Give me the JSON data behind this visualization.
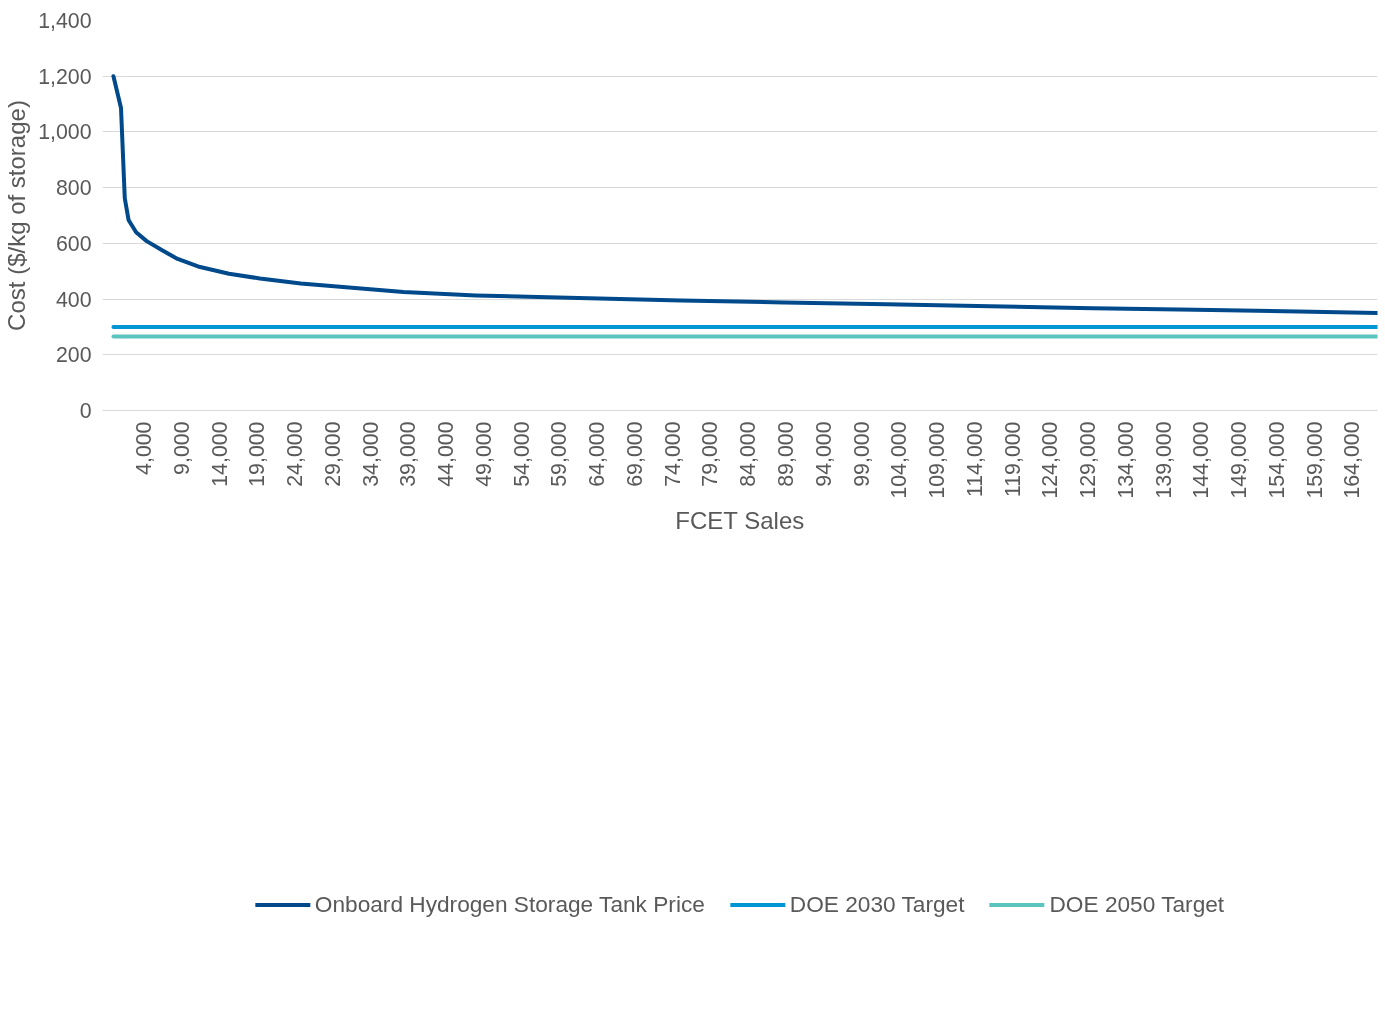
{
  "chart_data": {
    "type": "line",
    "xlabel": "FCET Sales",
    "ylabel": "Cost ($/kg of storage)",
    "xlim": [
      -1450,
      167400
    ],
    "ylim": [
      0,
      1400
    ],
    "xticks": [
      {
        "value": 4000,
        "label": "4,000"
      },
      {
        "value": 9000,
        "label": "9,000"
      },
      {
        "value": 14000,
        "label": "14,000"
      },
      {
        "value": 19000,
        "label": "19,000"
      },
      {
        "value": 24000,
        "label": "24,000"
      },
      {
        "value": 29000,
        "label": "29,000"
      },
      {
        "value": 34000,
        "label": "34,000"
      },
      {
        "value": 39000,
        "label": "39,000"
      },
      {
        "value": 44000,
        "label": "44,000"
      },
      {
        "value": 49000,
        "label": "49,000"
      },
      {
        "value": 54000,
        "label": "54,000"
      },
      {
        "value": 59000,
        "label": "59,000"
      },
      {
        "value": 64000,
        "label": "64,000"
      },
      {
        "value": 69000,
        "label": "69,000"
      },
      {
        "value": 74000,
        "label": "74,000"
      },
      {
        "value": 79000,
        "label": "79,000"
      },
      {
        "value": 84000,
        "label": "84,000"
      },
      {
        "value": 89000,
        "label": "89,000"
      },
      {
        "value": 94000,
        "label": "94,000"
      },
      {
        "value": 99000,
        "label": "99,000"
      },
      {
        "value": 104000,
        "label": "104,000"
      },
      {
        "value": 109000,
        "label": "109,000"
      },
      {
        "value": 114000,
        "label": "114,000"
      },
      {
        "value": 119000,
        "label": "119,000"
      },
      {
        "value": 124000,
        "label": "124,000"
      },
      {
        "value": 129000,
        "label": "129,000"
      },
      {
        "value": 134000,
        "label": "134,000"
      },
      {
        "value": 139000,
        "label": "139,000"
      },
      {
        "value": 144000,
        "label": "144,000"
      },
      {
        "value": 149000,
        "label": "149,000"
      },
      {
        "value": 154000,
        "label": "154,000"
      },
      {
        "value": 159000,
        "label": "159,000"
      },
      {
        "value": 164000,
        "label": "164,000"
      }
    ],
    "yticks": [
      0,
      {
        "value": 200,
        "label": "200"
      },
      {
        "value": 400,
        "label": "400"
      },
      {
        "value": 600,
        "label": "600"
      },
      {
        "value": 800,
        "label": "800"
      },
      {
        "value": 1000,
        "label": "1,000"
      },
      {
        "value": 1200,
        "label": "1,200"
      },
      {
        "value": 1400,
        "label": "1,400"
      }
    ],
    "grid": "y",
    "legend": "bottom",
    "line_style": "solid",
    "marker": "none",
    "series": [
      {
        "name": "Onboard Hydrogen Storage Tank Price",
        "color": "#004a8c",
        "x": [
          0,
          1000,
          1500,
          2000,
          3000,
          4400,
          6450,
          8500,
          11200,
          15300,
          19400,
          24800,
          31600,
          38400,
          48000,
          61600,
          75200,
          88800,
          102400,
          116100,
          129700,
          143300,
          156900,
          167400
        ],
        "values": [
          1200,
          1086,
          762,
          684,
          640,
          608,
          575,
          544,
          517,
          491,
          474,
          456,
          441,
          425,
          413,
          404,
          395,
          388,
          381,
          374,
          367,
          362,
          355,
          350
        ]
      },
      {
        "name": "DOE 2030 Target",
        "color": "#0096d6",
        "x": [
          0,
          167400
        ],
        "values": [
          300,
          300
        ]
      },
      {
        "name": "DOE 2050 Target",
        "color": "#5bc4bf",
        "x": [
          0,
          167400
        ],
        "values": [
          266,
          266
        ]
      }
    ]
  }
}
